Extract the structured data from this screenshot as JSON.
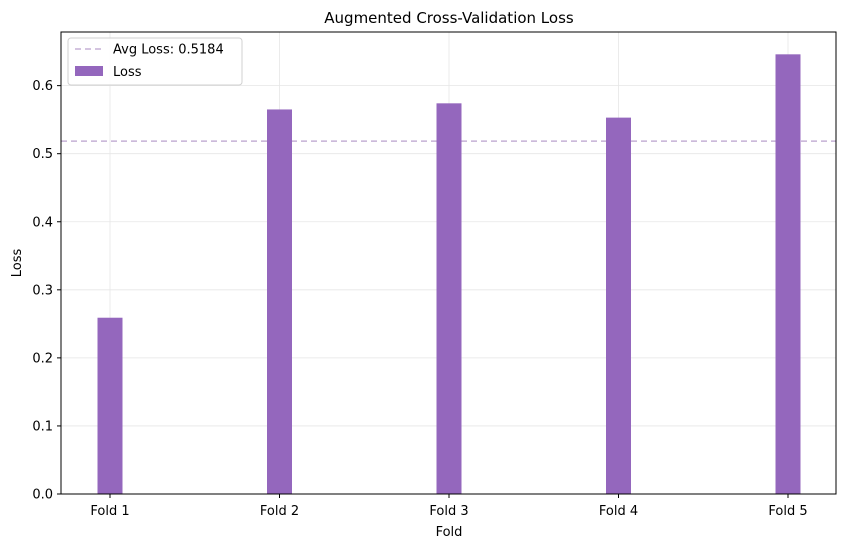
{
  "chart_data": {
    "type": "bar",
    "title": "Augmented Cross-Validation Loss",
    "xlabel": "Fold",
    "ylabel": "Loss",
    "categories": [
      "Fold 1",
      "Fold 2",
      "Fold 3",
      "Fold 4",
      "Fold 5"
    ],
    "series": [
      {
        "name": "Loss",
        "values": [
          0.259,
          0.565,
          0.574,
          0.553,
          0.646
        ],
        "color": "#9467bd"
      }
    ],
    "reference_line": {
      "label": "Avg Loss: 0.5184",
      "value": 0.5184,
      "color": "#c5b0d5",
      "style": "dashed"
    },
    "ylim": [
      0.0,
      0.6788
    ],
    "yticks": [
      0.0,
      0.1,
      0.2,
      0.3,
      0.4,
      0.5,
      0.6
    ],
    "ytick_labels": [
      "0.0",
      "0.1",
      "0.2",
      "0.3",
      "0.4",
      "0.5",
      "0.6"
    ],
    "grid": true,
    "legend_position": "top-left"
  }
}
